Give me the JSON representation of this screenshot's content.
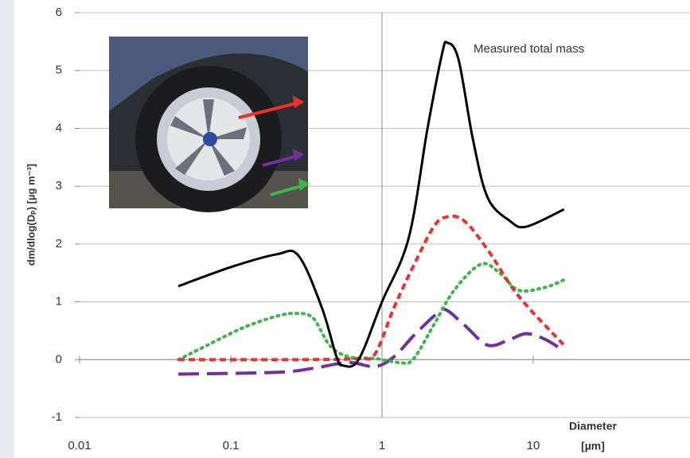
{
  "chart_data": {
    "type": "line",
    "y_label": "dm/dlog(Dₚ) [µg m⁻³]",
    "x_label": [
      "Diameter",
      "[µm]"
    ],
    "annotation": "Measured total mass",
    "x_scale": "log",
    "xlim": [
      0.01,
      100
    ],
    "xticks": [
      0.01,
      0.1,
      1,
      10
    ],
    "ylim": [
      -1,
      6
    ],
    "yticks": [
      -1,
      0,
      1,
      2,
      3,
      4,
      5,
      6
    ],
    "grid": true,
    "series": [
      {
        "color": "#000000",
        "dash": "solid",
        "x": [
          0.045,
          0.1,
          0.2,
          0.28,
          0.4,
          0.5,
          0.55,
          0.7,
          1,
          1.5,
          2,
          2.5,
          2.7,
          3.2,
          4,
          5,
          7,
          9,
          16
        ],
        "values": [
          1.27,
          1.6,
          1.82,
          1.8,
          0.9,
          0.05,
          -0.1,
          0,
          1.0,
          2.1,
          4.0,
          5.3,
          5.48,
          5.2,
          3.8,
          2.8,
          2.4,
          2.3,
          2.6
        ]
      },
      {
        "color": "#e8322d",
        "dash": "dashed",
        "x": [
          0.045,
          0.3,
          0.7,
          0.9,
          1.2,
          1.6,
          2.2,
          2.7,
          3.5,
          5,
          8,
          16
        ],
        "values": [
          0,
          0,
          0.02,
          0.1,
          0.9,
          1.6,
          2.3,
          2.47,
          2.4,
          1.9,
          1.1,
          0.25
        ]
      },
      {
        "color": "#3cb54a",
        "dash": "dotted",
        "x": [
          0.045,
          0.07,
          0.12,
          0.2,
          0.27,
          0.35,
          0.45,
          0.6,
          0.9,
          1.3,
          1.6,
          2.2,
          3,
          4.5,
          6,
          8,
          12,
          16
        ],
        "values": [
          0,
          0.25,
          0.55,
          0.75,
          0.8,
          0.72,
          0.25,
          0.05,
          0.02,
          -0.05,
          0,
          0.6,
          1.2,
          1.65,
          1.5,
          1.2,
          1.25,
          1.38
        ]
      },
      {
        "color": "#7030a0",
        "dash": "longdash",
        "x": [
          0.045,
          0.2,
          0.35,
          0.6,
          0.9,
          1.2,
          1.6,
          2.2,
          2.6,
          3.5,
          5,
          7,
          9,
          12,
          16
        ],
        "values": [
          -0.25,
          -0.22,
          -0.15,
          -0.05,
          -0.12,
          0.05,
          0.4,
          0.75,
          0.87,
          0.6,
          0.25,
          0.35,
          0.45,
          0.35,
          0.15
        ]
      }
    ]
  }
}
